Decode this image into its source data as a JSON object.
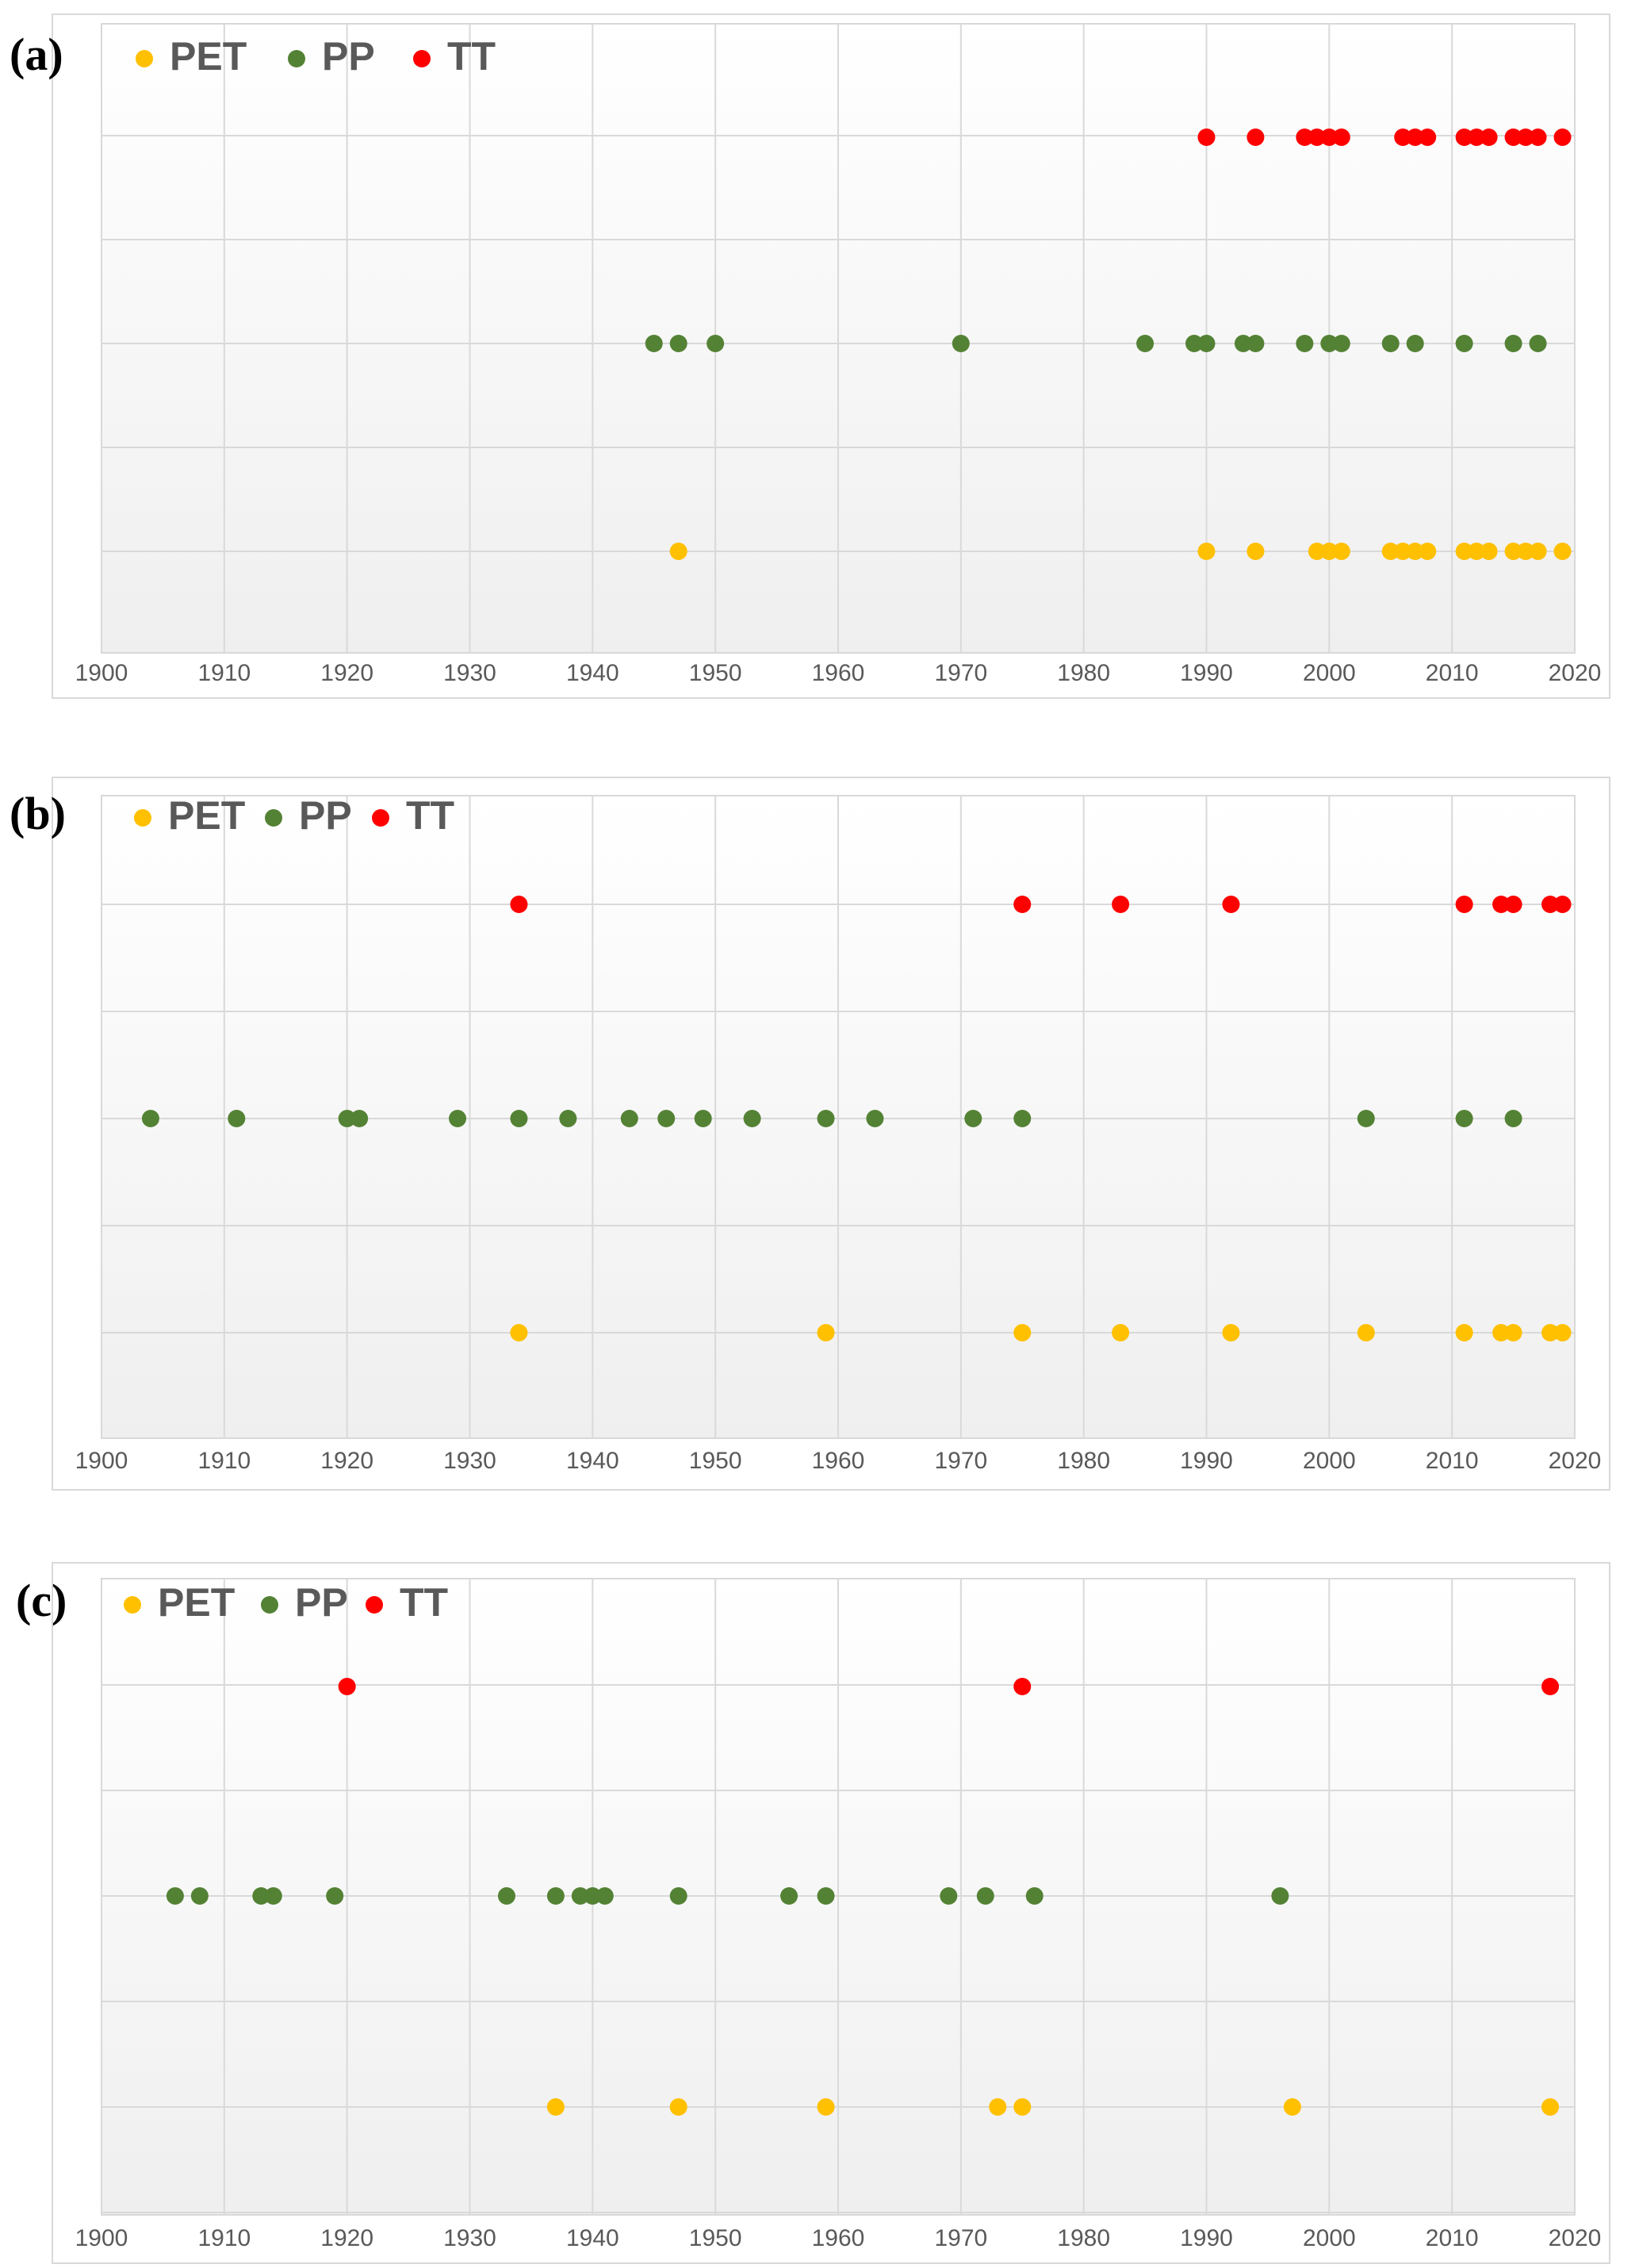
{
  "figure": {
    "series_colors": {
      "PET": "#FFC000",
      "PP": "#548235",
      "TT": "#FF0000"
    }
  },
  "chart_data": [
    {
      "type": "scatter",
      "panel_label": "(a)",
      "legend": [
        "PET",
        "PP",
        "TT"
      ],
      "legend_position": "top-left",
      "xlim": [
        1900,
        2020
      ],
      "x_ticks": [
        1900,
        1910,
        1920,
        1930,
        1940,
        1950,
        1960,
        1970,
        1980,
        1990,
        2000,
        2010,
        2020
      ],
      "rows": [
        "PET",
        "PP",
        "TT"
      ],
      "grid": true,
      "series": [
        {
          "name": "PET",
          "x": [
            1947,
            1990,
            1994,
            1999,
            2000,
            2001,
            2005,
            2006,
            2007,
            2008,
            2011,
            2012,
            2013,
            2015,
            2016,
            2017,
            2019
          ]
        },
        {
          "name": "PP",
          "x": [
            1945,
            1947,
            1950,
            1970,
            1985,
            1989,
            1990,
            1993,
            1994,
            1998,
            2000,
            2001,
            2005,
            2007,
            2011,
            2015,
            2017
          ]
        },
        {
          "name": "TT",
          "x": [
            1990,
            1994,
            1998,
            1999,
            2000,
            2001,
            2006,
            2007,
            2008,
            2011,
            2012,
            2013,
            2015,
            2016,
            2017,
            2019
          ]
        }
      ]
    },
    {
      "type": "scatter",
      "panel_label": "(b)",
      "legend": [
        "PET",
        "PP",
        "TT"
      ],
      "legend_position": "top-left",
      "xlim": [
        1900,
        2020
      ],
      "x_ticks": [
        1900,
        1910,
        1920,
        1930,
        1940,
        1950,
        1960,
        1970,
        1980,
        1990,
        2000,
        2010,
        2020
      ],
      "rows": [
        "PET",
        "PP",
        "TT"
      ],
      "grid": true,
      "series": [
        {
          "name": "PET",
          "x": [
            1934,
            1959,
            1975,
            1983,
            1992,
            2003,
            2011,
            2014,
            2015,
            2018,
            2019
          ]
        },
        {
          "name": "PP",
          "x": [
            1904,
            1911,
            1920,
            1921,
            1929,
            1934,
            1938,
            1943,
            1946,
            1949,
            1953,
            1959,
            1963,
            1971,
            1975,
            2003,
            2011,
            2015
          ]
        },
        {
          "name": "TT",
          "x": [
            1934,
            1975,
            1983,
            1992,
            2011,
            2014,
            2015,
            2018,
            2019
          ]
        }
      ]
    },
    {
      "type": "scatter",
      "panel_label": "(c)",
      "legend": [
        "PET",
        "PP",
        "TT"
      ],
      "legend_position": "top-left",
      "xlim": [
        1900,
        2020
      ],
      "x_ticks": [
        1900,
        1910,
        1920,
        1930,
        1940,
        1950,
        1960,
        1970,
        1980,
        1990,
        2000,
        2010,
        2020
      ],
      "rows": [
        "PET",
        "PP",
        "TT"
      ],
      "grid": true,
      "series": [
        {
          "name": "PET",
          "x": [
            1937,
            1947,
            1959,
            1973,
            1975,
            1997,
            2018
          ]
        },
        {
          "name": "PP",
          "x": [
            1906,
            1908,
            1913,
            1914,
            1919,
            1933,
            1937,
            1939,
            1940,
            1941,
            1947,
            1956,
            1959,
            1969,
            1972,
            1976,
            1996
          ]
        },
        {
          "name": "TT",
          "x": [
            1920,
            1975,
            2018
          ]
        }
      ]
    }
  ]
}
